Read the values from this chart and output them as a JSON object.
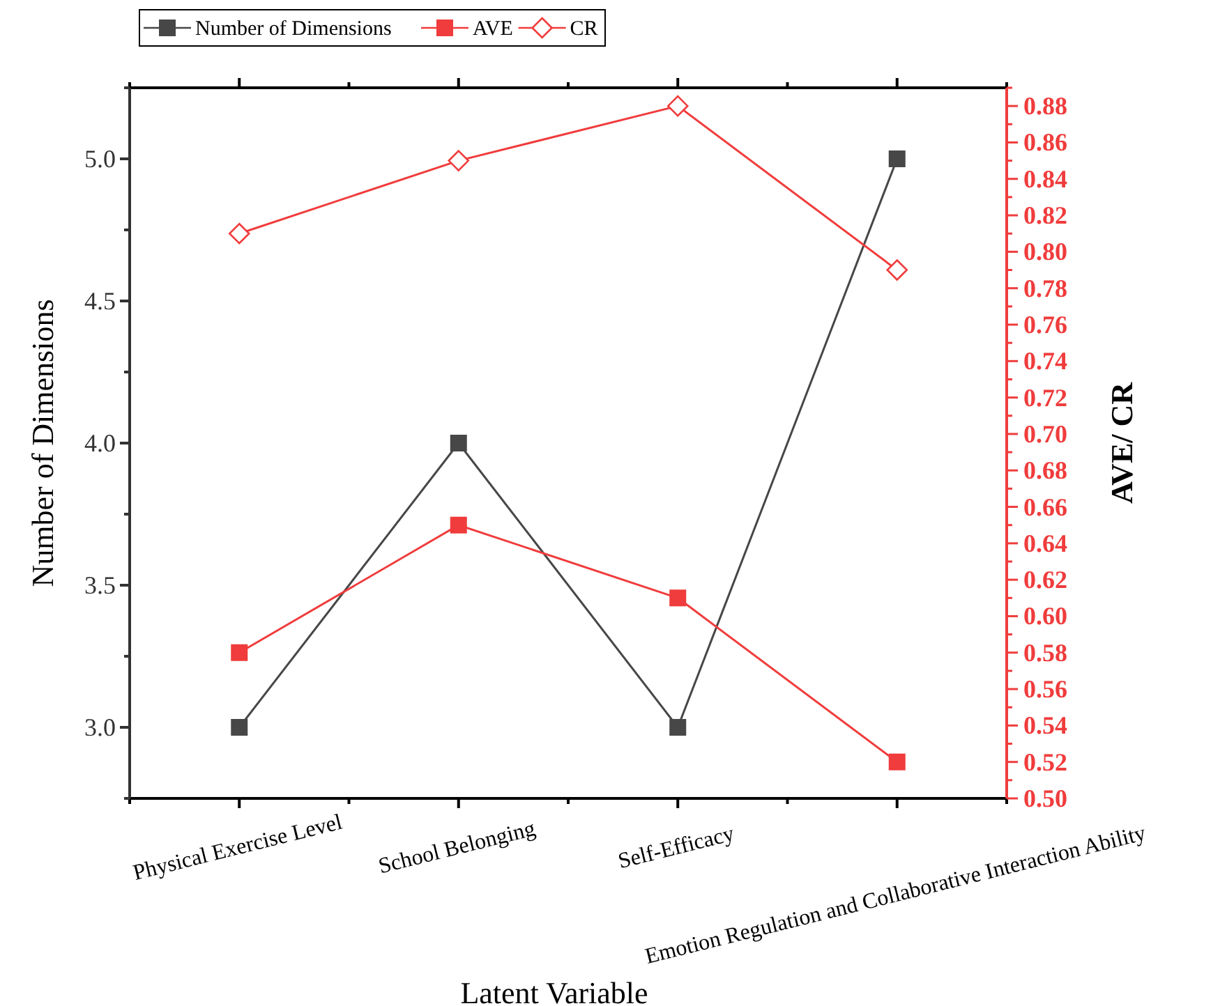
{
  "chart_data": {
    "type": "line",
    "xlabel": "Latent Variable",
    "ylabel": "Number of Dimensions",
    "y2label": "AVE/ CR",
    "categories": [
      "Physical Exercise Level",
      "School Belonging",
      "Self-Efficacy",
      "Emotion Regulation and Collaborative Interaction Ability"
    ],
    "series": [
      {
        "name": "Number of Dimensions",
        "color": "#474747",
        "marker": "square",
        "values": [
          3,
          4,
          3,
          5
        ]
      },
      {
        "name": "AVE",
        "color": "#f03c3c",
        "marker": "square",
        "axis": "y2",
        "values": [
          0.58,
          0.65,
          0.61,
          0.52
        ]
      },
      {
        "name": "CR",
        "color": "#f03c3c",
        "marker": "diamond",
        "axis": "y2",
        "values": [
          0.81,
          0.85,
          0.88,
          0.79
        ]
      }
    ],
    "ylim": [
      2.75,
      5.25
    ],
    "yticks": [
      {
        "value": 2.75,
        "label": null
      },
      {
        "value": 3,
        "label": "3.0"
      },
      {
        "value": 3.25,
        "label": null
      },
      {
        "value": 3.5,
        "label": "3.5"
      },
      {
        "value": 3.75,
        "label": null
      },
      {
        "value": 4,
        "label": "4.0"
      },
      {
        "value": 4.25,
        "label": null
      },
      {
        "value": 4.5,
        "label": "4.5"
      },
      {
        "value": 4.75,
        "label": null
      },
      {
        "value": 5,
        "label": "5.0"
      },
      {
        "value": 5.25,
        "label": null
      }
    ],
    "y2lim": [
      0.5,
      0.89
    ],
    "y2ticks": [
      {
        "value": 0.5,
        "label": "0.50"
      },
      {
        "value": 0.51,
        "label": null
      },
      {
        "value": 0.52,
        "label": "0.52"
      },
      {
        "value": 0.53,
        "label": null
      },
      {
        "value": 0.54,
        "label": "0.54"
      },
      {
        "value": 0.55,
        "label": null
      },
      {
        "value": 0.56,
        "label": "0.56"
      },
      {
        "value": 0.57,
        "label": null
      },
      {
        "value": 0.58,
        "label": "0.58"
      },
      {
        "value": 0.59,
        "label": null
      },
      {
        "value": 0.6,
        "label": "0.60"
      },
      {
        "value": 0.61,
        "label": null
      },
      {
        "value": 0.62,
        "label": "0.62"
      },
      {
        "value": 0.63,
        "label": null
      },
      {
        "value": 0.64,
        "label": "0.64"
      },
      {
        "value": 0.65,
        "label": null
      },
      {
        "value": 0.66,
        "label": "0.66"
      },
      {
        "value": 0.67,
        "label": null
      },
      {
        "value": 0.68,
        "label": "0.68"
      },
      {
        "value": 0.69,
        "label": null
      },
      {
        "value": 0.7,
        "label": "0.70"
      },
      {
        "value": 0.71,
        "label": null
      },
      {
        "value": 0.72,
        "label": "0.72"
      },
      {
        "value": 0.73,
        "label": null
      },
      {
        "value": 0.74,
        "label": "0.74"
      },
      {
        "value": 0.75,
        "label": null
      },
      {
        "value": 0.76,
        "label": "0.76"
      },
      {
        "value": 0.77,
        "label": null
      },
      {
        "value": 0.78,
        "label": "0.78"
      },
      {
        "value": 0.79,
        "label": null
      },
      {
        "value": 0.8,
        "label": "0.80"
      },
      {
        "value": 0.81,
        "label": null
      },
      {
        "value": 0.82,
        "label": "0.82"
      },
      {
        "value": 0.83,
        "label": null
      },
      {
        "value": 0.84,
        "label": "0.84"
      },
      {
        "value": 0.85,
        "label": null
      },
      {
        "value": 0.86,
        "label": "0.86"
      },
      {
        "value": 0.87,
        "label": null
      },
      {
        "value": 0.88,
        "label": "0.88"
      },
      {
        "value": 0.89,
        "label": null
      }
    ],
    "grid": false,
    "legend": "top",
    "line_style": "solid"
  }
}
